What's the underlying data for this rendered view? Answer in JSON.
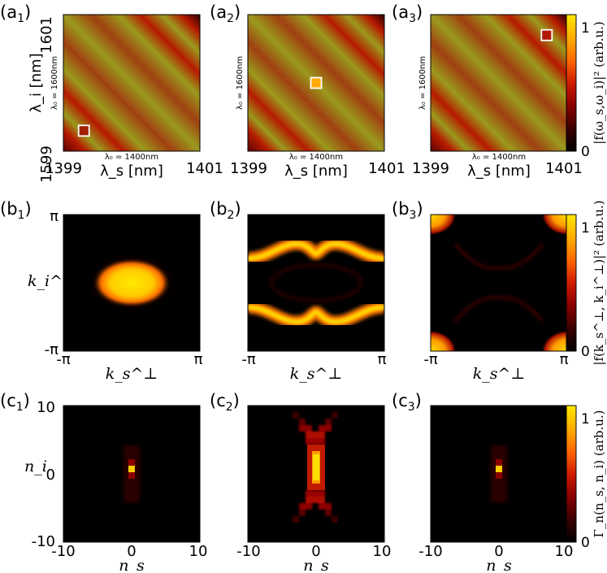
{
  "colors": {
    "colormap": [
      "#000000",
      "#3c0000",
      "#8b0000",
      "#d01c00",
      "#ff6a00",
      "#ffb000",
      "#ffe800"
    ],
    "stripe_olive": "#9a9a1e",
    "frame": "#000000",
    "marker_edge": "#ffffff"
  },
  "chart_data": [
    {
      "row": "a",
      "type": "heatmap",
      "quantity": "|f(ω_s, ω_i)|^2",
      "panels": [
        {
          "label": "(a",
          "sub": "1",
          "marker": {
            "x": 1399.3,
            "y": 1599.3
          }
        },
        {
          "label": "(a",
          "sub": "2",
          "marker": {
            "x": 1400.0,
            "y": 1600.0
          }
        },
        {
          "label": "(a",
          "sub": "3",
          "marker": {
            "x": 1400.7,
            "y": 1600.7
          }
        }
      ],
      "xlabel": "λ_s [nm]",
      "ylabel": "λ_i [nm]",
      "xlim": [
        1399,
        1401
      ],
      "ylim": [
        1599,
        1601
      ],
      "x_ticks": [
        "1399",
        "1401"
      ],
      "y_ticks": [
        "1599",
        "1601"
      ],
      "x_center_label": "λ₀ = 1400nm",
      "y_center_label": "λ₀ = 1600nm",
      "colorbar": {
        "ticks": [
          "0",
          "1"
        ],
        "label": "|f(ω_s,ω_i)|² (arb.u.)"
      }
    },
    {
      "row": "b",
      "type": "heatmap",
      "quantity": "|f(k_s^⊥, k_i^⊥)|^2",
      "panels": [
        {
          "label": "(b",
          "sub": "1"
        },
        {
          "label": "(b",
          "sub": "2"
        },
        {
          "label": "(b",
          "sub": "3"
        }
      ],
      "xlabel": "k_s^⊥",
      "ylabel": "k_i^⊥",
      "x_ticks": [
        "-π",
        "π"
      ],
      "y_ticks": [
        "-π",
        "π"
      ],
      "colorbar": {
        "ticks": [
          "0",
          "1"
        ],
        "label": "|f(k_s^⊥, k_i^⊥)|² (arb.u.)"
      }
    },
    {
      "row": "c",
      "type": "heatmap",
      "quantity": "Γ_n(n_s, n_i)",
      "panels": [
        {
          "label": "(c",
          "sub": "1"
        },
        {
          "label": "(c",
          "sub": "2"
        },
        {
          "label": "(c",
          "sub": "3"
        }
      ],
      "xlabel": "n_s",
      "ylabel": "n_i",
      "xlim": [
        -10,
        10
      ],
      "ylim": [
        -10,
        10
      ],
      "x_ticks": [
        "-10",
        "0",
        "10"
      ],
      "y_ticks": [
        "-10",
        "0",
        "10"
      ],
      "colorbar": {
        "ticks": [
          "0",
          "1"
        ],
        "label": "Γ_n(n_s, n_i) (arb.u.)"
      }
    }
  ]
}
